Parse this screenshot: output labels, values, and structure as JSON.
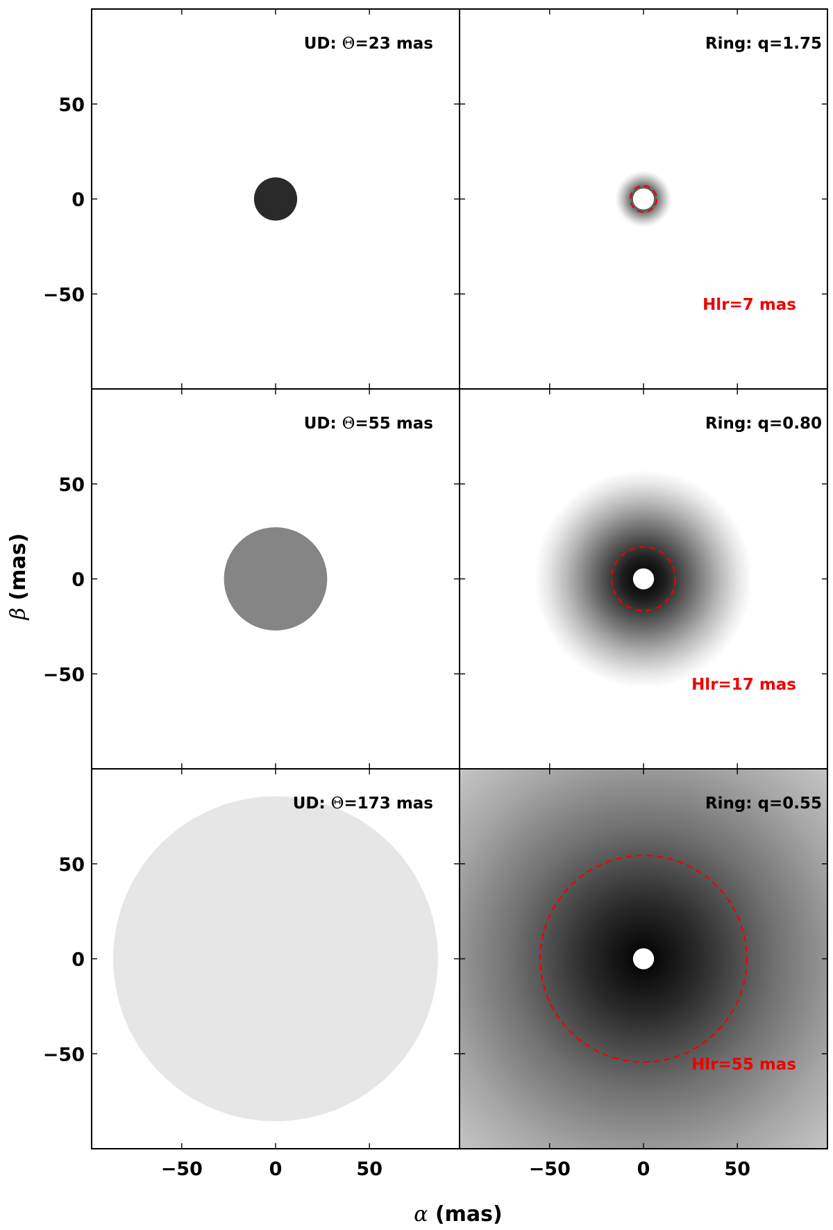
{
  "chart_data": {
    "type": "heatmap",
    "layout": "3 rows x 2 columns, shared axes",
    "xlabel": {
      "symbol": "α",
      "text": "(mas)"
    },
    "ylabel": {
      "symbol": "β",
      "text": "(mas)"
    },
    "xlim": [
      -98,
      98
    ],
    "ylim": [
      -100,
      100
    ],
    "xticks": [
      -50,
      0,
      50
    ],
    "yticks": [
      -50,
      0,
      50
    ],
    "xtick_labels": [
      "−50",
      "0",
      "50"
    ],
    "ytick_labels": [
      "50",
      "0",
      "−50"
    ],
    "colors": {
      "hlr_red": "#ee0000",
      "frame": "#000000",
      "background": "#ffffff"
    },
    "ud_panels": [
      {
        "prefix": "UD: ",
        "theta_symbol": "Θ",
        "value_text": "=23 mas",
        "theta_mas": 23,
        "disk_gray": "#2a2a2a"
      },
      {
        "prefix": "UD: ",
        "theta_symbol": "Θ",
        "value_text": "=55 mas",
        "theta_mas": 55,
        "disk_gray": "#858585"
      },
      {
        "prefix": "UD: ",
        "theta_symbol": "Θ",
        "value_text": "=173 mas",
        "theta_mas": 173,
        "disk_gray": "#e6e6e6"
      }
    ],
    "ring_panels": [
      {
        "label": "Ring: q=1.75",
        "q": 1.75,
        "hlr_label": "Hlr=7 mas",
        "hlr_mas": 7,
        "hole_radius_mas": 4.5,
        "halo_extent_mas": 15
      },
      {
        "label": "Ring: q=0.80",
        "q": 0.8,
        "hlr_label": "Hlr=17 mas",
        "hlr_mas": 17,
        "hole_radius_mas": 4.5,
        "halo_extent_mas": 58
      },
      {
        "label": "Ring: q=0.55",
        "q": 0.55,
        "hlr_label": "Hlr=55 mas",
        "hlr_mas": 55,
        "hole_radius_mas": 4.5,
        "halo_extent_mas": 200
      }
    ]
  }
}
